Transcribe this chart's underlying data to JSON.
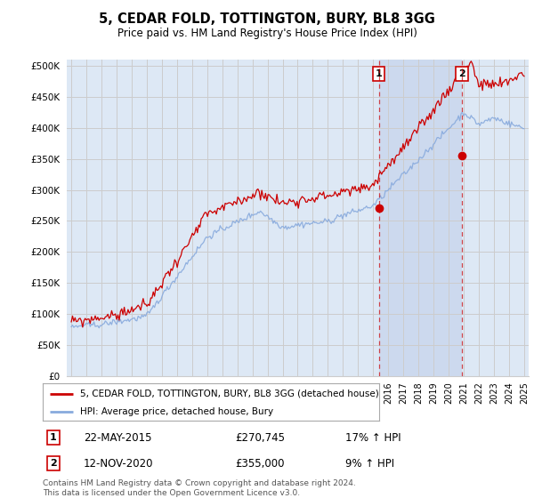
{
  "title": "5, CEDAR FOLD, TOTTINGTON, BURY, BL8 3GG",
  "subtitle": "Price paid vs. HM Land Registry's House Price Index (HPI)",
  "yticks": [
    0,
    50000,
    100000,
    150000,
    200000,
    250000,
    300000,
    350000,
    400000,
    450000,
    500000
  ],
  "ytick_labels": [
    "£0",
    "£50K",
    "£100K",
    "£150K",
    "£200K",
    "£250K",
    "£300K",
    "£350K",
    "£400K",
    "£450K",
    "£500K"
  ],
  "ylim": [
    0,
    510000
  ],
  "xlim_start": 1994.7,
  "xlim_end": 2025.3,
  "ann1_x": 2015.38,
  "ann1_y": 270745,
  "ann1_date": "22-MAY-2015",
  "ann1_price": "£270,745",
  "ann1_pct": "17% ↑ HPI",
  "ann2_x": 2020.87,
  "ann2_y": 355000,
  "ann2_date": "12-NOV-2020",
  "ann2_price": "£355,000",
  "ann2_pct": "9% ↑ HPI",
  "legend_line1": "5, CEDAR FOLD, TOTTINGTON, BURY, BL8 3GG (detached house)",
  "legend_line2": "HPI: Average price, detached house, Bury",
  "footer": "Contains HM Land Registry data © Crown copyright and database right 2024.\nThis data is licensed under the Open Government Licence v3.0.",
  "line_color_red": "#cc0000",
  "line_color_blue": "#88aadd",
  "annotation_box_color": "#cc0000",
  "grid_color": "#cccccc",
  "background_color": "#ffffff",
  "plot_bg_color": "#dde8f5",
  "highlight_bg_color": "#ccd9ee"
}
